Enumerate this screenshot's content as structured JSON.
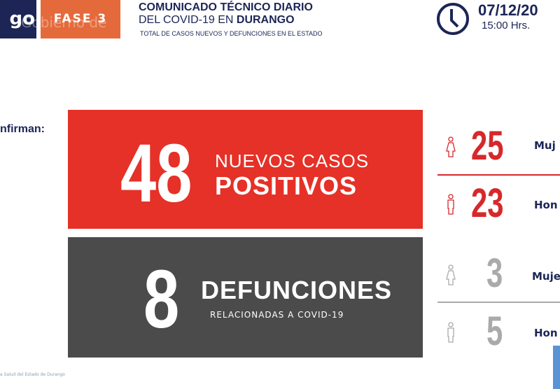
{
  "header": {
    "logo_text": "go",
    "watermark": "Gobierno de",
    "phase": "FASE 3",
    "title_line1": "COMUNICADO TÉCNICO DIARIO",
    "title_line2_prefix": "DEL COVID-19 EN ",
    "title_line2_bold": "DURANGO",
    "subtitle": "TOTAL DE CASOS NUEVOS Y DEFUNCIONES EN EL ESTADO",
    "date": "07/12/20",
    "time": "15:00 Hrs.",
    "icon": "clock-icon"
  },
  "confirm_label": "nfirman:",
  "positives": {
    "count": "48",
    "line1": "NUEVOS CASOS",
    "line2": "POSITIVOS",
    "color": "#e53127",
    "women": {
      "count": "25",
      "label": "Muj"
    },
    "men": {
      "count": "23",
      "label": "Hon"
    }
  },
  "deaths": {
    "count": "8",
    "line1": "DEFUNCIONES",
    "line2": "RELACIONADAS A COVID-19",
    "color": "#4b4b4b",
    "women": {
      "count": "3",
      "label": "Muje"
    },
    "men": {
      "count": "5",
      "label": "Hon"
    }
  },
  "footer": "a Salud del Estado de Durango"
}
